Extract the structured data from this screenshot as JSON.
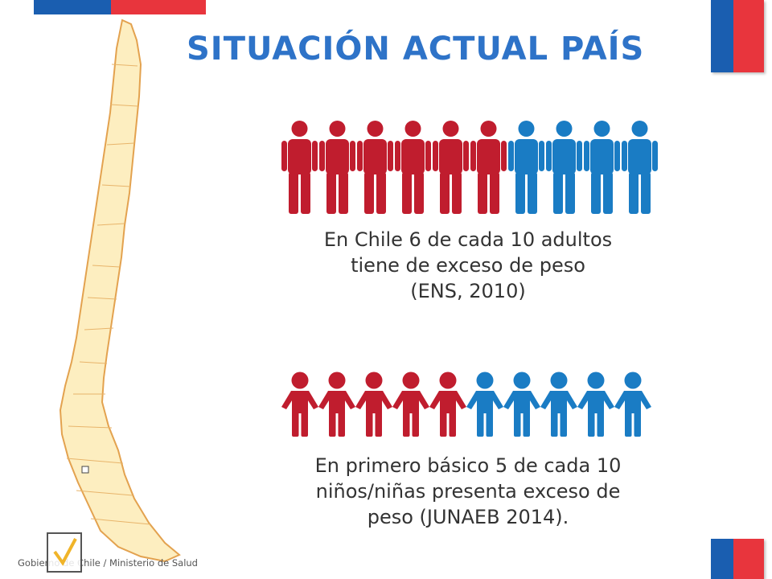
{
  "title": "SITUACIÓN ACTUAL PAÍS",
  "colors": {
    "red": "#c01d2e",
    "blue": "#1a7cc4",
    "title": "#2e73c8",
    "flag_blue": "#1a5eb0",
    "flag_red": "#e8353d",
    "map_fill": "#fdeec0",
    "map_stroke": "#e3a24f"
  },
  "adults": {
    "icon": "adult-person-icon",
    "total": 10,
    "highlighted": 6,
    "caption_lines": [
      "En Chile 6 de cada 10 adultos",
      "tiene de exceso de peso",
      "(ENS, 2010)"
    ]
  },
  "kids": {
    "icon": "child-person-icon",
    "total": 10,
    "highlighted": 5,
    "caption_lines": [
      "En primero básico 5 de cada 10",
      "niños/niñas presenta exceso de",
      "peso (JUNAEB 2014)."
    ]
  },
  "footer": "Gobierno de Chile / Ministerio de Salud"
}
